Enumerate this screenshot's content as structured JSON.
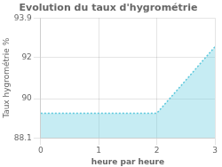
{
  "chart_data": {
    "type": "line",
    "title": "Evolution du taux d'hygrométrie",
    "xlabel": "heure par heure",
    "ylabel": "Taux hygrométrie %",
    "x": [
      0,
      2,
      3
    ],
    "series": [
      {
        "name": "Taux hygrométrie",
        "color": "#5bc8dc",
        "values": [
          89.3,
          89.3,
          92.5
        ],
        "line_style": "dotted"
      }
    ],
    "xlim": [
      0,
      3
    ],
    "xticks": [
      0,
      1,
      2,
      3
    ],
    "ylim": [
      88.1,
      93.9
    ],
    "yticks": [
      88.1,
      90,
      92,
      93.9
    ],
    "grid": true
  }
}
